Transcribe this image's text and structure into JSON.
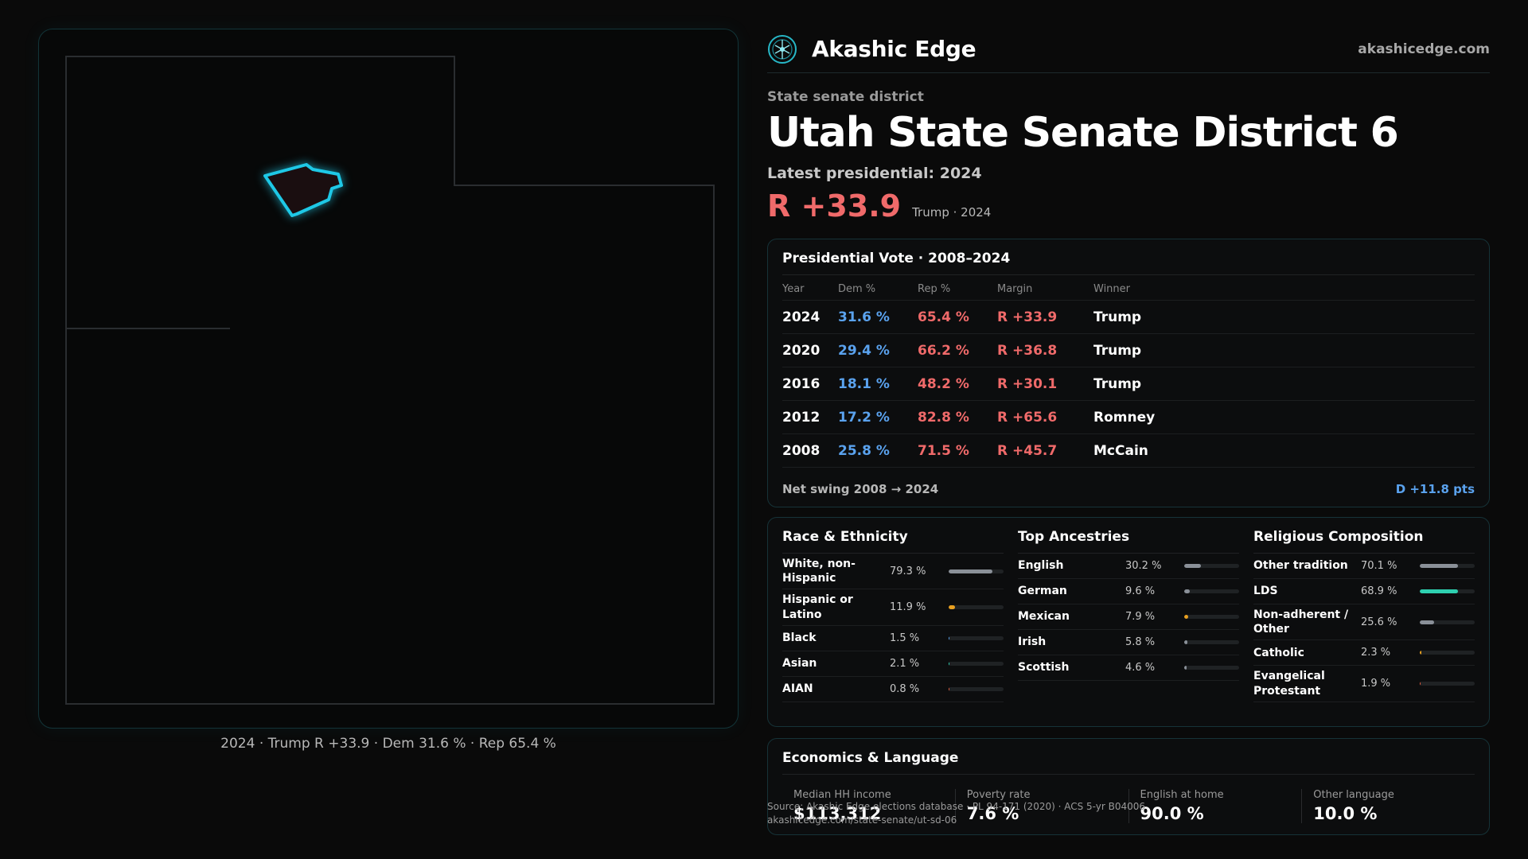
{
  "brand": {
    "name": "Akashic Edge",
    "site": "akashicedge.com",
    "logo_icon": "akashic-edge-logo-icon"
  },
  "header": {
    "eyebrow": "State senate district",
    "title": "Utah State Senate District 6",
    "subtitle": "Latest presidential: 2024",
    "margin": "R +33.9",
    "margin_note": "Trump · 2024"
  },
  "map": {
    "caption": "2024 · Trump R +33.9 · Dem 31.6 % · Rep 65.4 %",
    "highlight_color": "#1ec8e6"
  },
  "presidential": {
    "title": "Presidential Vote · 2008–2024",
    "columns": [
      "Year",
      "Dem %",
      "Rep %",
      "Margin",
      "Winner"
    ],
    "rows": [
      {
        "year": "2024",
        "dem": "31.6 %",
        "rep": "65.4 %",
        "margin": "R +33.9",
        "winner": "Trump"
      },
      {
        "year": "2020",
        "dem": "29.4 %",
        "rep": "66.2 %",
        "margin": "R +36.8",
        "winner": "Trump"
      },
      {
        "year": "2016",
        "dem": "18.1 %",
        "rep": "48.2 %",
        "margin": "R +30.1",
        "winner": "Trump"
      },
      {
        "year": "2012",
        "dem": "17.2 %",
        "rep": "82.8 %",
        "margin": "R +65.6",
        "winner": "Romney"
      },
      {
        "year": "2008",
        "dem": "25.8 %",
        "rep": "71.5 %",
        "margin": "R +45.7",
        "winner": "McCain"
      }
    ],
    "swing_label": "Net swing 2008 → 2024",
    "swing_value": "D +11.8 pts",
    "colors": {
      "dem": "#5aa2ee",
      "rep": "#f06a6a"
    }
  },
  "demographics": {
    "race": {
      "title": "Race & Ethnicity",
      "rows": [
        {
          "label": "White, non-Hispanic",
          "value": "79.3 %",
          "fraction": 0.793,
          "color": "#8a9098"
        },
        {
          "label": "Hispanic or Latino",
          "value": "11.9 %",
          "fraction": 0.119,
          "color": "#e8a020"
        },
        {
          "label": "Black",
          "value": "1.5 %",
          "fraction": 0.015,
          "color": "#5aa2ee"
        },
        {
          "label": "Asian",
          "value": "2.1 %",
          "fraction": 0.021,
          "color": "#2ed0b0"
        },
        {
          "label": "AIAN",
          "value": "0.8 %",
          "fraction": 0.008,
          "color": "#e86040"
        }
      ]
    },
    "ancestry": {
      "title": "Top Ancestries",
      "rows": [
        {
          "label": "English",
          "value": "30.2 %",
          "fraction": 0.302,
          "color": "#8a9098"
        },
        {
          "label": "German",
          "value": "9.6 %",
          "fraction": 0.096,
          "color": "#8a9098"
        },
        {
          "label": "Mexican",
          "value": "7.9 %",
          "fraction": 0.079,
          "color": "#e8a020"
        },
        {
          "label": "Irish",
          "value": "5.8 %",
          "fraction": 0.058,
          "color": "#8a9098"
        },
        {
          "label": "Scottish",
          "value": "4.6 %",
          "fraction": 0.046,
          "color": "#8a9098"
        }
      ]
    },
    "religion": {
      "title": "Religious Composition",
      "rows": [
        {
          "label": "Other tradition",
          "value": "70.1 %",
          "fraction": 0.701,
          "color": "#8a9098"
        },
        {
          "label": "LDS",
          "value": "68.9 %",
          "fraction": 0.689,
          "color": "#2ed0b0"
        },
        {
          "label": "Non-adherent / Other",
          "value": "25.6 %",
          "fraction": 0.256,
          "color": "#8a9098"
        },
        {
          "label": "Catholic",
          "value": "2.3 %",
          "fraction": 0.023,
          "color": "#e8a020"
        },
        {
          "label": "Evangelical Protestant",
          "value": "1.9 %",
          "fraction": 0.019,
          "color": "#e86040"
        }
      ]
    }
  },
  "economics": {
    "title": "Economics & Language",
    "cells": [
      {
        "label": "Median HH income",
        "value": "$113,312"
      },
      {
        "label": "Poverty rate",
        "value": "7.6 %"
      },
      {
        "label": "English at home",
        "value": "90.0 %"
      },
      {
        "label": "Other language",
        "value": "10.0 %"
      }
    ]
  },
  "source": {
    "line1": "Source: Akashic Edge elections database · PL 94-171 (2020) · ACS 5-yr B04006",
    "line2": "akashicedge.com/state-senate/ut-sd-06"
  }
}
